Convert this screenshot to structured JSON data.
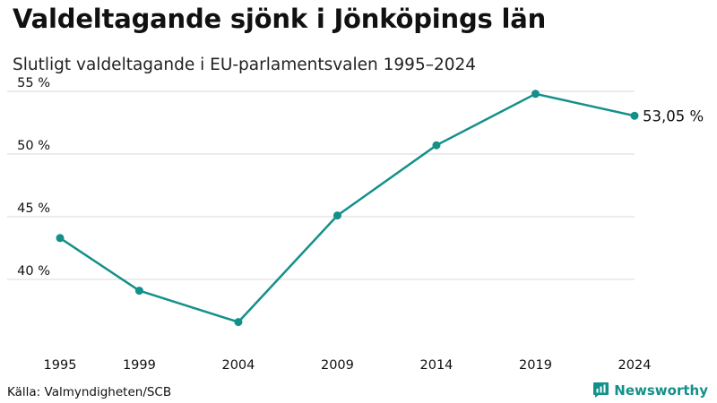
{
  "title": "Valdeltagande sjönk i Jönköpings län",
  "subtitle": "Slutligt valdeltagande i EU-parlamentsvalen 1995–2024",
  "source": "Källa: Valmyndigheten/SCB",
  "brand": {
    "name": "Newsworthy",
    "icon": "newsworthy-logo-icon"
  },
  "colors": {
    "line": "#14908a",
    "grid": "#d9d9d9",
    "text": "#111111"
  },
  "chart_data": {
    "type": "line",
    "title": "Valdeltagande sjönk i Jönköpings län",
    "subtitle": "Slutligt valdeltagande i EU-parlamentsvalen 1995–2024",
    "xlabel": "",
    "ylabel": "",
    "x": [
      1995,
      1999,
      2004,
      2009,
      2014,
      2019,
      2024
    ],
    "x_tick_labels": [
      "1995",
      "1999",
      "2004",
      "2009",
      "2014",
      "2019",
      "2024"
    ],
    "series": [
      {
        "name": "Valdeltagande",
        "values": [
          43.3,
          39.1,
          36.6,
          45.1,
          50.7,
          54.8,
          53.05
        ]
      }
    ],
    "ylim": [
      35.5,
      55.5
    ],
    "y_ticks": [
      40,
      45,
      50,
      55
    ],
    "y_tick_labels": [
      "40 %",
      "45 %",
      "50 %",
      "55 %"
    ],
    "end_label": "53,05 %",
    "grid": true,
    "legend": "none"
  }
}
